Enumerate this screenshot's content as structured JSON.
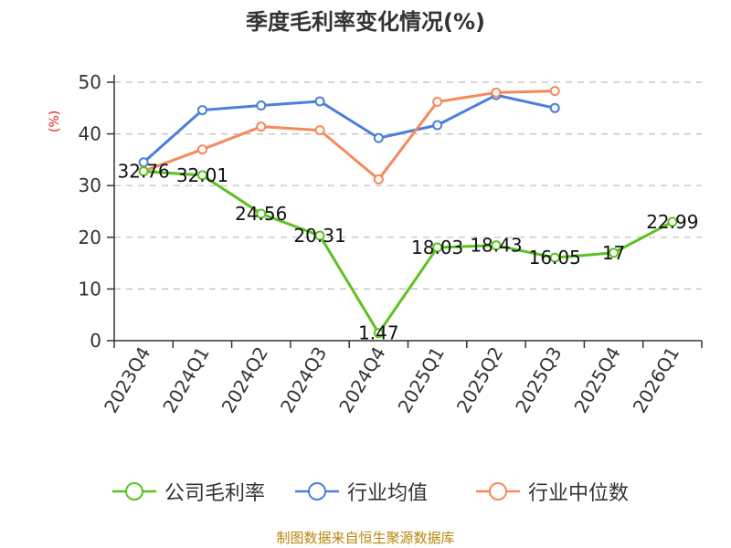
{
  "chart_data": {
    "type": "line",
    "title": "季度毛利率变化情况(%)",
    "ylabel": "(%)",
    "xlabel": "",
    "ylim": [
      0,
      50
    ],
    "yticks": [
      0,
      10,
      20,
      30,
      40,
      50
    ],
    "grid": true,
    "legend_position": "bottom",
    "categories": [
      "2023Q4",
      "2024Q1",
      "2024Q2",
      "2024Q3",
      "2024Q4",
      "2025Q1",
      "2025Q2",
      "2025Q3",
      "2025Q4",
      "2026Q1"
    ],
    "series": [
      {
        "name": "公司毛利率",
        "color": "#5cc21f",
        "values": [
          32.76,
          32.01,
          24.56,
          20.31,
          1.47,
          18.03,
          18.43,
          16.05,
          17,
          22.99
        ],
        "labels": [
          "32.76",
          "32.01",
          "24.56",
          "20.31",
          "1.47",
          "18.03",
          "18.43",
          "16.05",
          "17",
          "22.99"
        ]
      },
      {
        "name": "行业均值",
        "color": "#4a7fdc",
        "values": [
          34.5,
          44.6,
          45.5,
          46.3,
          39.2,
          41.7,
          47.5,
          45.0,
          null,
          null
        ]
      },
      {
        "name": "行业中位数",
        "color": "#f5895b",
        "values": [
          32.8,
          37.0,
          41.4,
          40.7,
          31.2,
          46.2,
          48.0,
          48.3,
          null,
          null
        ]
      }
    ],
    "source": "制图数据来自恒生聚源数据库"
  }
}
